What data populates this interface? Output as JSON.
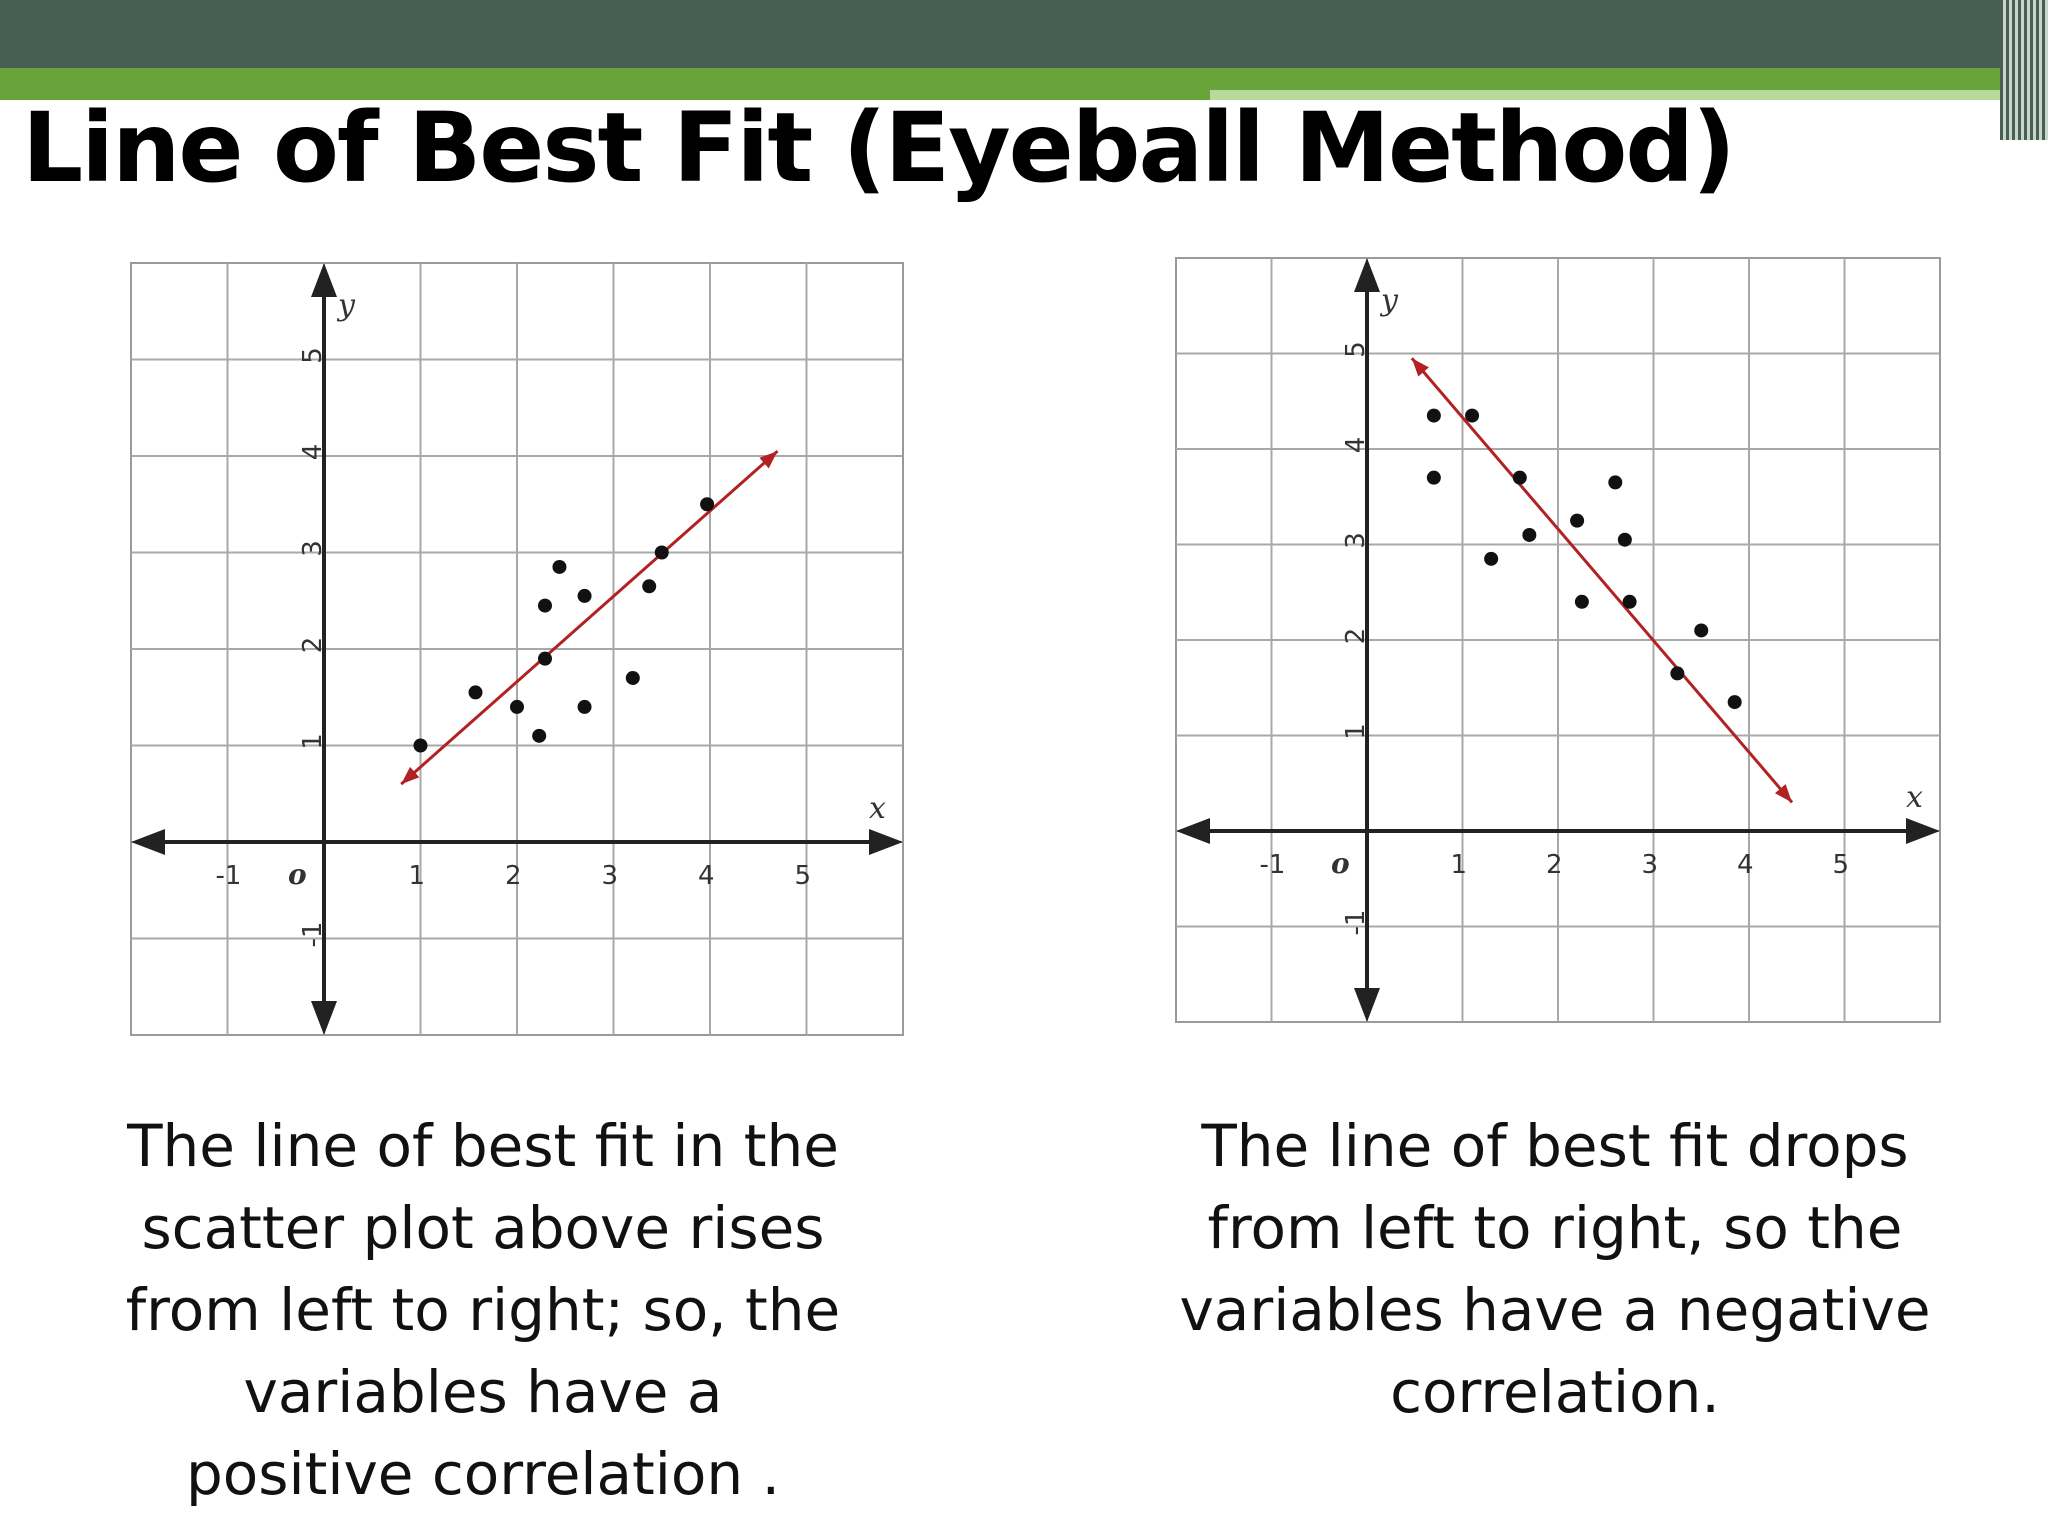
{
  "slide": {
    "title": "Line of Best Fit (Eyeball Method)",
    "colors": {
      "band_dark": "#465f52",
      "band_green": "#68a43a",
      "fit_line": "#b22222"
    }
  },
  "chart_data": [
    {
      "type": "scatter",
      "x_label": "x",
      "y_label": "y",
      "origin_label": "o",
      "xlim": [
        -2,
        6
      ],
      "ylim": [
        -2,
        6
      ],
      "x_ticks": [
        "-1",
        "1",
        "2",
        "3",
        "4",
        "5"
      ],
      "y_ticks": [
        "5",
        "4",
        "3",
        "2",
        "1",
        "-1"
      ],
      "grid": true,
      "points": [
        {
          "x": 1.0,
          "y": 1.0
        },
        {
          "x": 1.57,
          "y": 1.55
        },
        {
          "x": 2.0,
          "y": 1.4
        },
        {
          "x": 2.23,
          "y": 1.1
        },
        {
          "x": 2.29,
          "y": 1.9
        },
        {
          "x": 2.29,
          "y": 2.45
        },
        {
          "x": 2.44,
          "y": 2.85
        },
        {
          "x": 2.7,
          "y": 2.55
        },
        {
          "x": 2.7,
          "y": 1.4
        },
        {
          "x": 3.2,
          "y": 1.7
        },
        {
          "x": 3.37,
          "y": 2.65
        },
        {
          "x": 3.5,
          "y": 3.0
        },
        {
          "x": 3.97,
          "y": 3.5
        }
      ],
      "fit_line": {
        "x": [
          0.8,
          4.7
        ],
        "y": [
          0.6,
          4.05
        ],
        "arrows": "both"
      }
    },
    {
      "type": "scatter",
      "x_label": "x",
      "y_label": "y",
      "origin_label": "o",
      "xlim": [
        -2,
        6
      ],
      "ylim": [
        -2,
        6
      ],
      "x_ticks": [
        "-1",
        "1",
        "2",
        "3",
        "4",
        "5"
      ],
      "y_ticks": [
        "5",
        "4",
        "3",
        "2",
        "1",
        "-1"
      ],
      "grid": true,
      "points": [
        {
          "x": 0.7,
          "y": 4.35
        },
        {
          "x": 0.7,
          "y": 3.7
        },
        {
          "x": 1.1,
          "y": 4.35
        },
        {
          "x": 1.3,
          "y": 2.85
        },
        {
          "x": 1.6,
          "y": 3.7
        },
        {
          "x": 1.7,
          "y": 3.1
        },
        {
          "x": 2.2,
          "y": 3.25
        },
        {
          "x": 2.25,
          "y": 2.4
        },
        {
          "x": 2.6,
          "y": 3.65
        },
        {
          "x": 2.7,
          "y": 3.05
        },
        {
          "x": 2.75,
          "y": 2.4
        },
        {
          "x": 3.25,
          "y": 1.65
        },
        {
          "x": 3.5,
          "y": 2.1
        },
        {
          "x": 3.85,
          "y": 1.35
        }
      ],
      "fit_line": {
        "x": [
          0.47,
          4.45
        ],
        "y": [
          4.95,
          0.3
        ],
        "arrows": "both"
      }
    }
  ],
  "captions": {
    "left": [
      "The line of best fit in the",
      "scatter plot above rises",
      "from left to right; so, the",
      "variables have a",
      "positive correlation ."
    ],
    "right": [
      "The line of best fit drops",
      "from left to right, so the",
      "variables have a negative",
      "correlation."
    ]
  }
}
